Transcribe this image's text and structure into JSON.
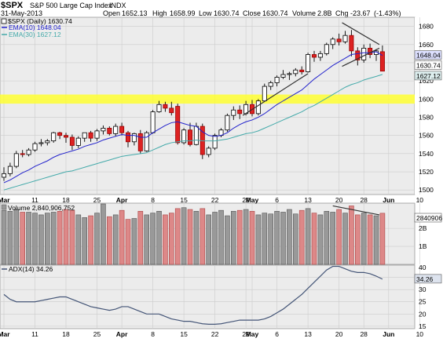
{
  "header": {
    "symbol": "$SPX",
    "name": "S&P 500 Large Cap Index",
    "exchange": "INDX",
    "date": "31-May-2013",
    "open_label": "Open",
    "open": "1652.13",
    "high_label": "High",
    "high": "1658.99",
    "low_label": "Low",
    "low": "1630.74",
    "close_label": "Close",
    "close": "1630.74",
    "volume_label": "Volume",
    "volume": "2.8B",
    "chg_label": "Chg",
    "chg": "-23.67",
    "chg_pct": "(-1.43%)"
  },
  "price_legend": {
    "main": "$SPX (Daily) 1630.74",
    "ema10": "EMA(10) 1648.04",
    "ema30": "EMA(30) 1627.12"
  },
  "volume_legend": "Volume 2,840,906,752",
  "adx_legend": "ADX(14) 34.26",
  "badges": {
    "price_ema10": "1648.04",
    "price_close": "1630.74",
    "price_ema30": "1627.12",
    "volume": "2840906",
    "adx": "34.26"
  },
  "colors": {
    "up": "#ffffff",
    "down": "#dd2222",
    "wick": "#000000",
    "ema10": "#2222cc",
    "ema30": "#44aaaa",
    "vol_up": "#999999",
    "vol_down": "#dd8888",
    "adx": "#445577",
    "highlight": "#ffff33",
    "panel_bg": "#ececec",
    "grid": "#cccccc"
  },
  "chart_data": [
    {
      "type": "candlestick",
      "title": "$SPX (Daily)",
      "ylim": [
        1495,
        1690
      ],
      "yticks": [
        1500,
        1520,
        1540,
        1560,
        1580,
        1600,
        1620,
        1640,
        1660,
        1680
      ],
      "x_labels": [
        {
          "label": "Mar",
          "index": 0,
          "bold": true
        },
        {
          "label": "11",
          "index": 5
        },
        {
          "label": "18",
          "index": 10
        },
        {
          "label": "25",
          "index": 15
        },
        {
          "label": "Apr",
          "index": 19,
          "bold": true
        },
        {
          "label": "8",
          "index": 24
        },
        {
          "label": "15",
          "index": 29
        },
        {
          "label": "22",
          "index": 34
        },
        {
          "label": "29",
          "index": 39
        },
        {
          "label": "May",
          "index": 40,
          "bold": true
        },
        {
          "label": "6",
          "index": 44
        },
        {
          "label": "13",
          "index": 49
        },
        {
          "label": "20",
          "index": 54
        },
        {
          "label": "28",
          "index": 58
        },
        {
          "label": "Jun",
          "index": 62,
          "bold": true
        },
        {
          "label": "10",
          "index": 67
        }
      ],
      "ohlc": [
        [
          1514,
          1525,
          1510,
          1518
        ],
        [
          1518,
          1530,
          1515,
          1526
        ],
        [
          1526,
          1543,
          1524,
          1540
        ],
        [
          1540,
          1544,
          1536,
          1539
        ],
        [
          1539,
          1546,
          1537,
          1544
        ],
        [
          1544,
          1553,
          1542,
          1551
        ],
        [
          1551,
          1556,
          1548,
          1552
        ],
        [
          1552,
          1556,
          1549,
          1554
        ],
        [
          1554,
          1564,
          1552,
          1563
        ],
        [
          1563,
          1564,
          1556,
          1560
        ],
        [
          1560,
          1563,
          1552,
          1558
        ],
        [
          1558,
          1561,
          1544,
          1549
        ],
        [
          1549,
          1559,
          1546,
          1557
        ],
        [
          1557,
          1563,
          1553,
          1563
        ],
        [
          1563,
          1565,
          1553,
          1557
        ],
        [
          1557,
          1567,
          1554,
          1565
        ],
        [
          1565,
          1571,
          1561,
          1568
        ],
        [
          1568,
          1570,
          1560,
          1562
        ],
        [
          1562,
          1573,
          1559,
          1570
        ],
        [
          1570,
          1574,
          1560,
          1563
        ],
        [
          1563,
          1565,
          1547,
          1553
        ],
        [
          1553,
          1563,
          1549,
          1562
        ],
        [
          1562,
          1566,
          1540,
          1543
        ],
        [
          1543,
          1565,
          1542,
          1563
        ],
        [
          1563,
          1588,
          1562,
          1586
        ],
        [
          1586,
          1598,
          1585,
          1594
        ],
        [
          1594,
          1597,
          1586,
          1590
        ],
        [
          1590,
          1597,
          1582,
          1585
        ],
        [
          1592,
          1595,
          1550,
          1552
        ],
        [
          1552,
          1568,
          1550,
          1566
        ],
        [
          1566,
          1574,
          1548,
          1550
        ],
        [
          1550,
          1574,
          1549,
          1570
        ],
        [
          1570,
          1573,
          1534,
          1539
        ],
        [
          1539,
          1548,
          1536,
          1546
        ],
        [
          1546,
          1562,
          1544,
          1560
        ],
        [
          1560,
          1568,
          1558,
          1566
        ],
        [
          1566,
          1584,
          1564,
          1582
        ],
        [
          1582,
          1592,
          1577,
          1588
        ],
        [
          1588,
          1593,
          1578,
          1584
        ],
        [
          1584,
          1598,
          1582,
          1594
        ],
        [
          1594,
          1599,
          1581,
          1584
        ],
        [
          1584,
          1600,
          1582,
          1598
        ],
        [
          1598,
          1617,
          1597,
          1614
        ],
        [
          1614,
          1620,
          1610,
          1618
        ],
        [
          1618,
          1626,
          1614,
          1624
        ],
        [
          1624,
          1632,
          1622,
          1627
        ],
        [
          1627,
          1630,
          1621,
          1628
        ],
        [
          1628,
          1634,
          1625,
          1632
        ],
        [
          1632,
          1636,
          1627,
          1630
        ],
        [
          1630,
          1651,
          1629,
          1649
        ],
        [
          1649,
          1653,
          1641,
          1646
        ],
        [
          1646,
          1653,
          1642,
          1650
        ],
        [
          1650,
          1662,
          1648,
          1660
        ],
        [
          1660,
          1668,
          1655,
          1666
        ],
        [
          1666,
          1672,
          1659,
          1663
        ],
        [
          1663,
          1675,
          1661,
          1670
        ],
        [
          1670,
          1676,
          1647,
          1653
        ],
        [
          1653,
          1657,
          1637,
          1643
        ],
        [
          1643,
          1660,
          1640,
          1656
        ],
        [
          1656,
          1661,
          1645,
          1649
        ],
        [
          1649,
          1655,
          1642,
          1653
        ],
        [
          1652.13,
          1658.99,
          1630.74,
          1630.74
        ]
      ],
      "ema10": [
        1508,
        1511,
        1515,
        1519,
        1522,
        1526,
        1529,
        1532,
        1536,
        1539,
        1541,
        1543,
        1545,
        1548,
        1550,
        1552,
        1555,
        1557,
        1559,
        1561,
        1560,
        1560,
        1558,
        1558,
        1563,
        1567,
        1571,
        1574,
        1575,
        1573,
        1571,
        1570,
        1564,
        1560,
        1559,
        1560,
        1563,
        1568,
        1572,
        1575,
        1577,
        1580,
        1584,
        1589,
        1594,
        1598,
        1602,
        1606,
        1610,
        1616,
        1622,
        1627,
        1632,
        1637,
        1641,
        1645,
        1649,
        1650,
        1651,
        1651,
        1652,
        1648.04
      ],
      "ema30": [
        1500,
        1502,
        1504,
        1506,
        1508,
        1510,
        1512,
        1514,
        1516,
        1518,
        1520,
        1521,
        1523,
        1525,
        1527,
        1529,
        1531,
        1533,
        1535,
        1537,
        1538,
        1539,
        1540,
        1541,
        1544,
        1547,
        1550,
        1552,
        1553,
        1554,
        1554,
        1555,
        1554,
        1554,
        1554,
        1555,
        1556,
        1558,
        1560,
        1562,
        1563,
        1565,
        1568,
        1571,
        1574,
        1577,
        1580,
        1583,
        1586,
        1590,
        1593,
        1597,
        1601,
        1605,
        1609,
        1613,
        1616,
        1618,
        1621,
        1623,
        1625,
        1627.12
      ],
      "support_band": [
        1595,
        1605
      ],
      "triangle_upper": [
        [
          54.5,
          1684
        ],
        [
          60.5,
          1660
        ]
      ],
      "triangle_lower": [
        [
          54.5,
          1636
        ],
        [
          60.5,
          1656
        ]
      ],
      "uptrend_line": [
        [
          38.5,
          1582
        ],
        [
          49,
          1628
        ]
      ]
    },
    {
      "type": "bar",
      "title": "Volume",
      "ylim": [
        0,
        3.4
      ],
      "ylabel_ticks": [
        {
          "value": 1,
          "label": "1B"
        },
        {
          "value": 2,
          "label": "2B"
        }
      ],
      "values": [
        3.0,
        2.95,
        3.05,
        2.9,
        2.9,
        2.85,
        2.75,
        2.85,
        2.9,
        2.95,
        3.05,
        3.0,
        2.75,
        2.6,
        2.7,
        2.85,
        3.5,
        2.65,
        2.75,
        3.0,
        2.5,
        2.55,
        2.95,
        2.75,
        2.85,
        2.95,
        2.75,
        2.85,
        3.1,
        3.15,
        3.05,
        2.95,
        3.1,
        2.75,
        2.9,
        3.0,
        2.7,
        2.95,
        3.0,
        3.05,
        2.95,
        2.75,
        2.85,
        2.8,
        2.95,
        2.9,
        3.05,
        2.8,
        3.0,
        3.1,
        2.85,
        2.75,
        2.95,
        2.9,
        3.05,
        2.85,
        3.25,
        2.75,
        2.85,
        2.75,
        2.7,
        2.84
      ],
      "trend_line": [
        [
          53,
          3.25
        ],
        [
          60.5,
          2.75
        ]
      ]
    },
    {
      "type": "line",
      "title": "ADX(14)",
      "ylim": [
        14,
        40
      ],
      "yticks": [
        15,
        20,
        25,
        30,
        35
      ],
      "top_tick": 40,
      "values": [
        28,
        26,
        25,
        25,
        25,
        25,
        25.5,
        26,
        26.5,
        27,
        27,
        26,
        25,
        24,
        23,
        22.5,
        22,
        21.5,
        22,
        23,
        23,
        22,
        21,
        20,
        20,
        20,
        19,
        18,
        17.5,
        17,
        17,
        16.5,
        16,
        15.8,
        15.8,
        16,
        16.5,
        17,
        17.5,
        17.5,
        17.5,
        17.5,
        18,
        19,
        20.5,
        22,
        24,
        26,
        28,
        30.5,
        33,
        35.5,
        38,
        39.5,
        39.5,
        38.5,
        37.5,
        37,
        37,
        36.5,
        35.5,
        34.26
      ]
    }
  ]
}
